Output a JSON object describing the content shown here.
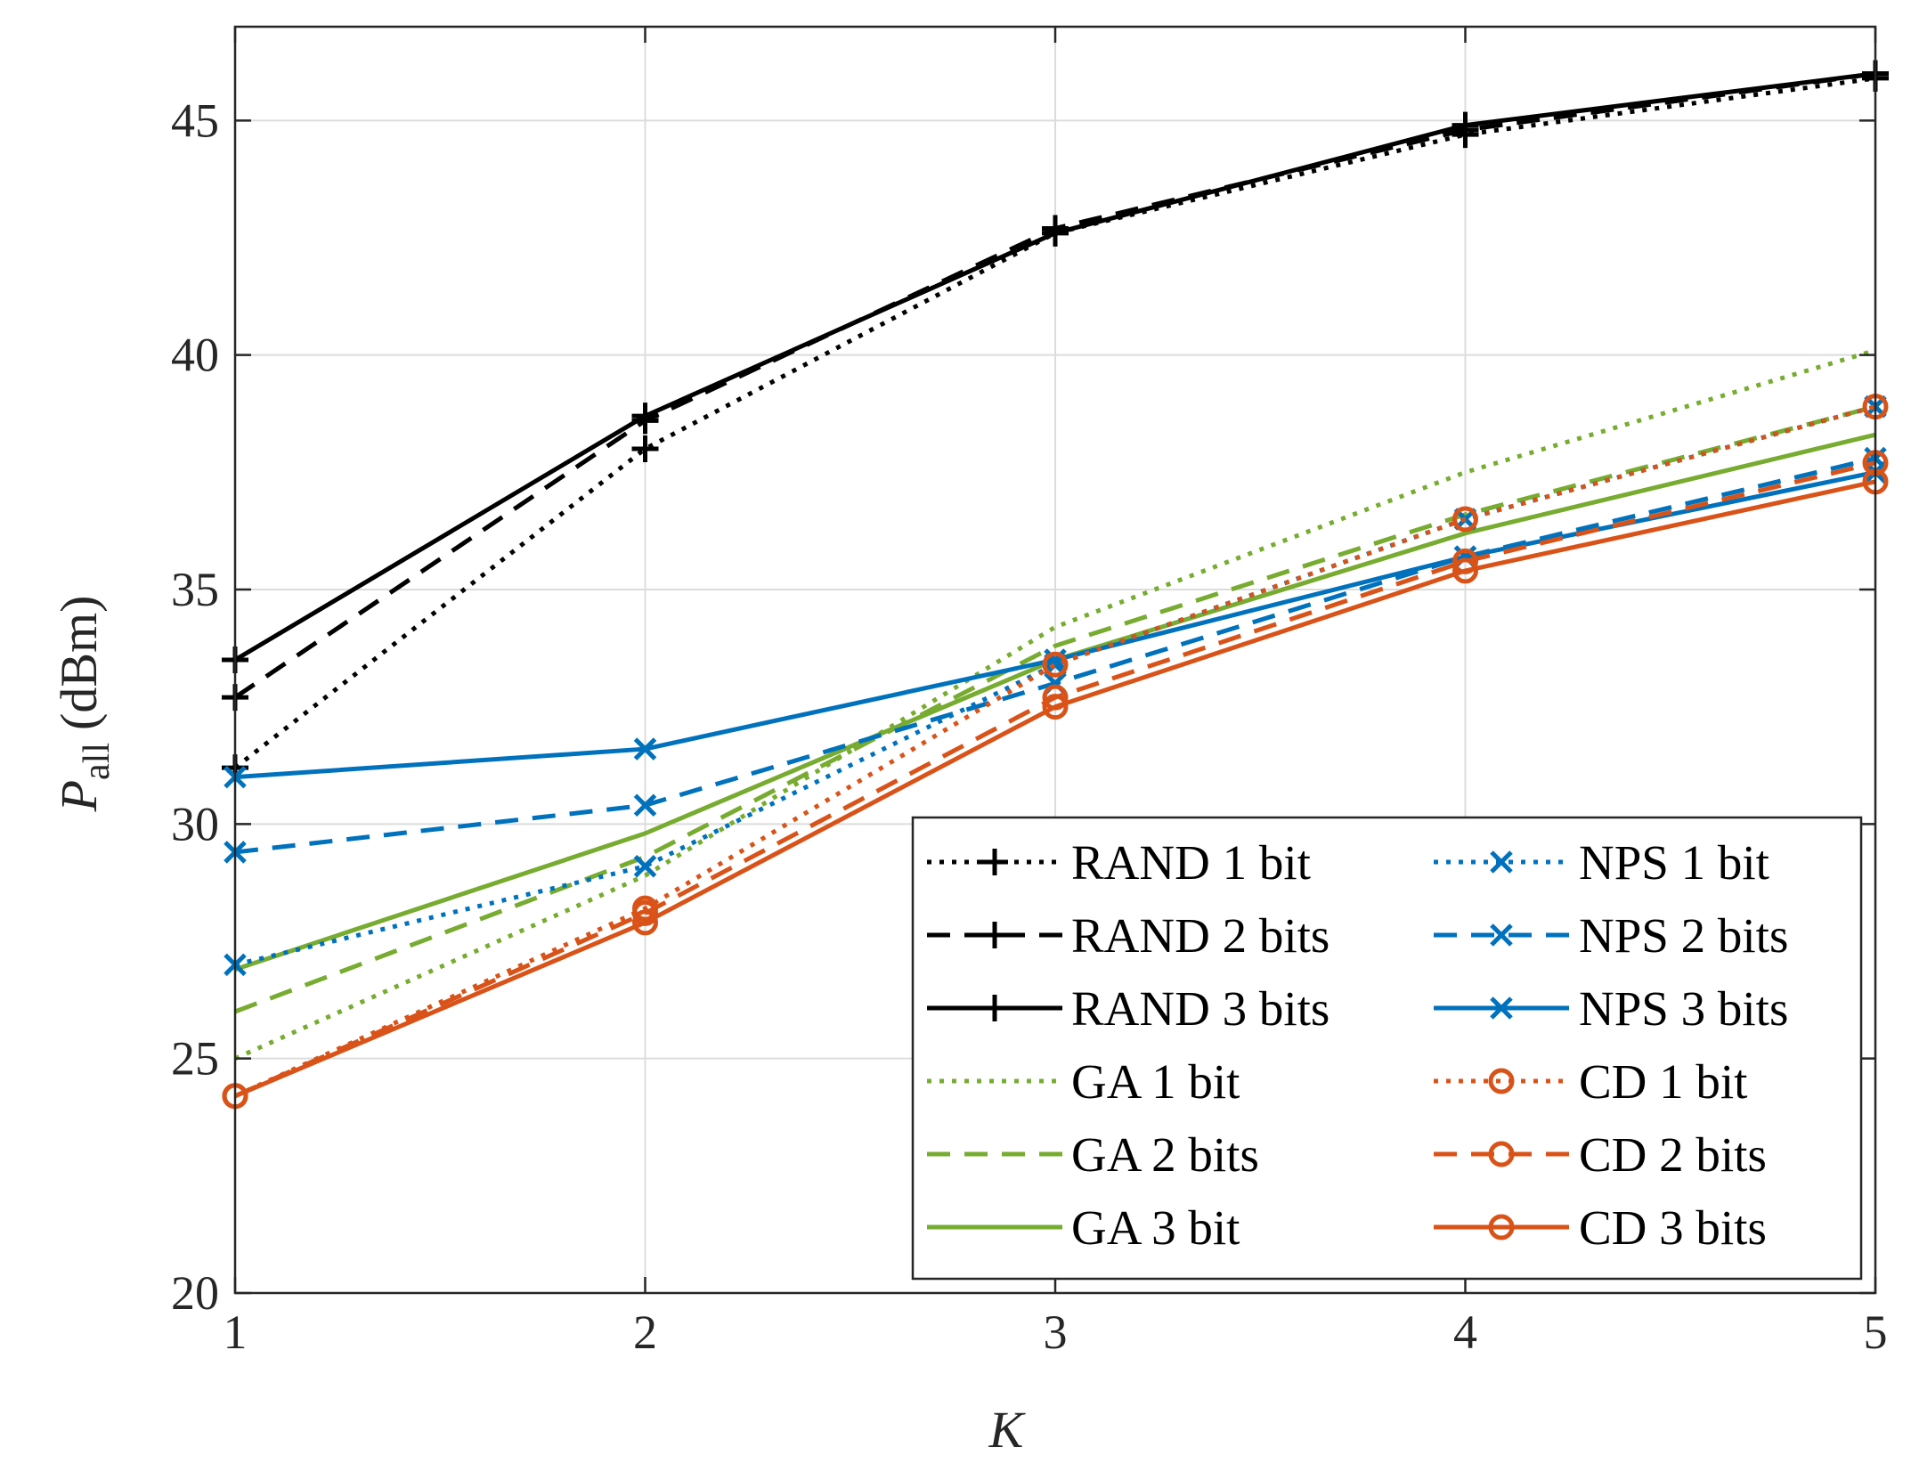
{
  "chart_data": {
    "type": "line",
    "title": "",
    "xlabel": "K",
    "ylabel": "P",
    "ylabel_subscript": "all",
    "ylabel_unit": "(dBm)",
    "xlim": [
      1,
      5
    ],
    "ylim": [
      20,
      47
    ],
    "xticks": [
      1,
      2,
      3,
      4,
      5
    ],
    "yticks": [
      20,
      25,
      30,
      35,
      40,
      45
    ],
    "grid": true,
    "legend_position": "bottom-right",
    "legend_columns": 2,
    "x": [
      1,
      2,
      3,
      4,
      5
    ],
    "series": [
      {
        "name": "RAND 1 bit",
        "color": "#000000",
        "dash": "dotted",
        "marker": "plus",
        "values": [
          31.2,
          38.0,
          42.6,
          44.7,
          45.9
        ]
      },
      {
        "name": "RAND 2 bits",
        "color": "#000000",
        "dash": "dashed",
        "marker": "plus",
        "values": [
          32.7,
          38.6,
          42.7,
          44.8,
          46.0
        ]
      },
      {
        "name": "RAND 3 bits",
        "color": "#000000",
        "dash": "solid",
        "marker": "plus",
        "values": [
          33.5,
          38.7,
          42.6,
          44.9,
          46.0
        ]
      },
      {
        "name": "GA 1 bit",
        "color": "#77AC30",
        "dash": "dotted",
        "marker": "none",
        "values": [
          25.0,
          28.9,
          34.2,
          37.5,
          40.1
        ]
      },
      {
        "name": "GA 2 bits",
        "color": "#77AC30",
        "dash": "dashed",
        "marker": "none",
        "values": [
          26.0,
          29.3,
          33.8,
          36.6,
          38.9
        ]
      },
      {
        "name": "GA 3 bit",
        "color": "#77AC30",
        "dash": "solid",
        "marker": "none",
        "values": [
          26.9,
          29.8,
          33.5,
          36.2,
          38.3
        ]
      },
      {
        "name": "NPS 1 bit",
        "color": "#0072BD",
        "dash": "dotted",
        "marker": "cross",
        "values": [
          27.0,
          29.1,
          33.4,
          36.5,
          38.9
        ]
      },
      {
        "name": "NPS 2 bits",
        "color": "#0072BD",
        "dash": "dashed",
        "marker": "cross",
        "values": [
          29.4,
          30.4,
          33.0,
          35.7,
          37.8
        ]
      },
      {
        "name": "NPS 3 bits",
        "color": "#0072BD",
        "dash": "solid",
        "marker": "cross",
        "values": [
          31.0,
          31.6,
          33.5,
          35.7,
          37.5
        ]
      },
      {
        "name": "CD 1 bit",
        "color": "#D95319",
        "dash": "dotted",
        "marker": "circle",
        "values": [
          24.2,
          28.2,
          33.4,
          36.5,
          38.9
        ]
      },
      {
        "name": "CD 2 bits",
        "color": "#D95319",
        "dash": "dashed",
        "marker": "circle",
        "values": [
          24.2,
          28.1,
          32.7,
          35.6,
          37.7
        ]
      },
      {
        "name": "CD 3 bits",
        "color": "#D95319",
        "dash": "solid",
        "marker": "circle",
        "values": [
          24.2,
          27.9,
          32.5,
          35.4,
          37.3
        ]
      }
    ]
  }
}
